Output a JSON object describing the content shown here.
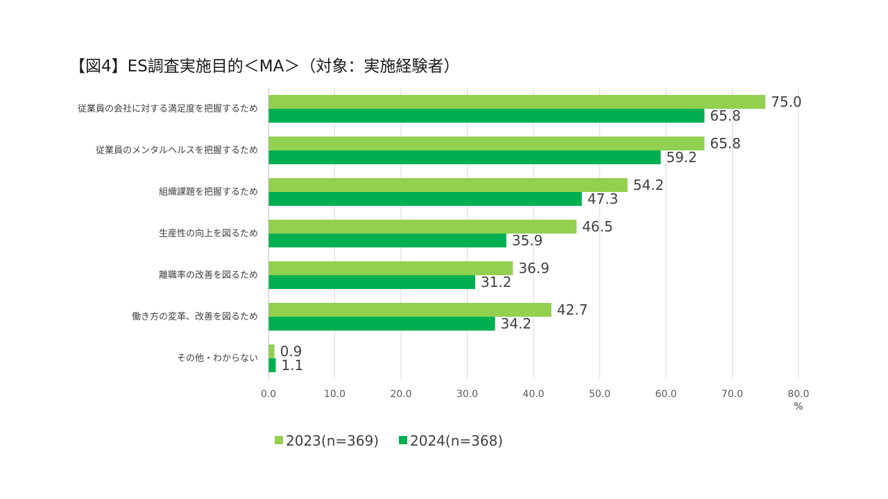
{
  "chart_data": {
    "type": "bar",
    "orientation": "horizontal",
    "title": "【図4】ES調査実施目的＜MA＞（対象：実施経験者）",
    "categories": [
      "従業員の会社に対する満足度を把握するため",
      "従業員のメンタルヘルスを把握するため",
      "組織課題を把握するため",
      "生産性の向上を図るため",
      "離職率の改善を図るため",
      "働き方の変革、改善を図るため",
      "その他・わからない"
    ],
    "series": [
      {
        "name": "2023(n=369)",
        "color": "#92d050",
        "values": [
          75.0,
          65.8,
          54.2,
          46.5,
          36.9,
          42.7,
          0.9
        ]
      },
      {
        "name": "2024(n=368)",
        "color": "#00b050",
        "values": [
          65.8,
          59.2,
          47.3,
          35.9,
          31.2,
          34.2,
          1.1
        ]
      }
    ],
    "xlim": [
      0,
      80
    ],
    "x_ticks": [
      "0.0",
      "10.0",
      "20.0",
      "30.0",
      "40.0",
      "50.0",
      "60.0",
      "70.0",
      "80.0"
    ],
    "x_unit": "%",
    "grid": true,
    "legend_position": "bottom"
  }
}
